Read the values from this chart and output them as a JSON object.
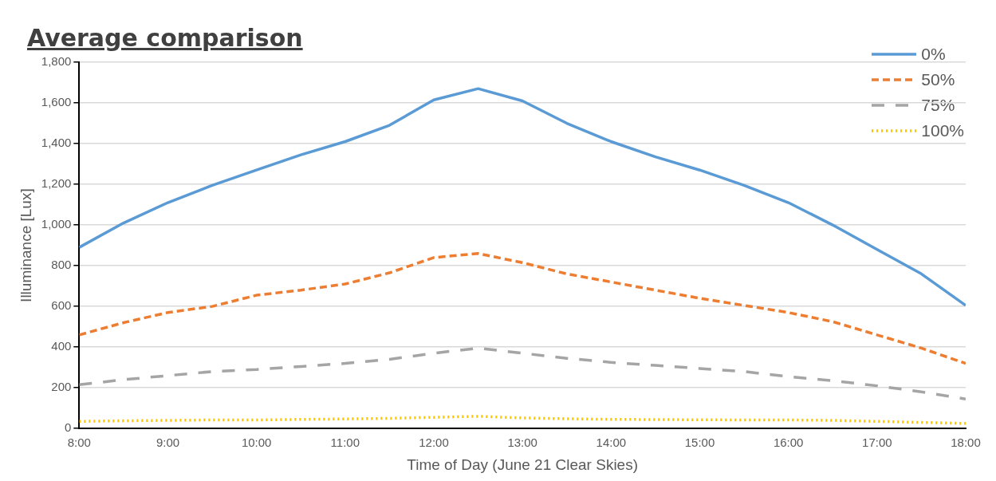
{
  "chart_data": {
    "type": "line",
    "title": "Average comparison",
    "xlabel": "Time of Day (June 21 Clear Skies)",
    "ylabel": "Illuminance [Lux]",
    "x": [
      8,
      8.5,
      9,
      9.5,
      10,
      10.5,
      11,
      11.5,
      12,
      12.5,
      13,
      13.5,
      14,
      14.5,
      15,
      15.5,
      16,
      16.5,
      17,
      17.5,
      18
    ],
    "series": [
      {
        "name": "0%",
        "color": "#5b9bd5",
        "line_style": "solid",
        "values": [
          890,
          1010,
          1110,
          1195,
          1270,
          1345,
          1410,
          1490,
          1615,
          1670,
          1610,
          1500,
          1410,
          1335,
          1270,
          1195,
          1110,
          1000,
          880,
          760,
          605
        ]
      },
      {
        "name": "50%",
        "color": "#ed7d31",
        "line_style": "dashed",
        "values": [
          460,
          520,
          570,
          600,
          655,
          680,
          710,
          765,
          840,
          860,
          815,
          760,
          720,
          680,
          640,
          605,
          570,
          525,
          460,
          395,
          320
        ]
      },
      {
        "name": "75%",
        "color": "#a5a5a5",
        "line_style": "longdash",
        "values": [
          215,
          240,
          260,
          280,
          290,
          305,
          320,
          340,
          370,
          395,
          370,
          345,
          325,
          310,
          295,
          280,
          255,
          235,
          210,
          180,
          145
        ]
      },
      {
        "name": "100%",
        "color": "#ffc000",
        "line_style": "dotted",
        "values": [
          35,
          38,
          40,
          42,
          42,
          45,
          47,
          50,
          55,
          60,
          52,
          48,
          45,
          44,
          43,
          42,
          42,
          40,
          35,
          30,
          25
        ]
      }
    ],
    "xlim": [
      8,
      18
    ],
    "xticks": [
      {
        "value": 8,
        "label": "8:00"
      },
      {
        "value": 9,
        "label": "9:00"
      },
      {
        "value": 10,
        "label": "10:00"
      },
      {
        "value": 11,
        "label": "11:00"
      },
      {
        "value": 12,
        "label": "12:00"
      },
      {
        "value": 13,
        "label": "13:00"
      },
      {
        "value": 14,
        "label": "14:00"
      },
      {
        "value": 15,
        "label": "15:00"
      },
      {
        "value": 16,
        "label": "16:00"
      },
      {
        "value": 17,
        "label": "17:00"
      },
      {
        "value": 18,
        "label": "18:00"
      }
    ],
    "ylim": [
      0,
      1800
    ],
    "yticks": [
      {
        "value": 0,
        "label": "0"
      },
      {
        "value": 200,
        "label": "200"
      },
      {
        "value": 400,
        "label": "400"
      },
      {
        "value": 600,
        "label": "600"
      },
      {
        "value": 800,
        "label": "800"
      },
      {
        "value": 1000,
        "label": "1,000"
      },
      {
        "value": 1200,
        "label": "1,200"
      },
      {
        "value": 1400,
        "label": "1,400"
      },
      {
        "value": 1600,
        "label": "1,600"
      },
      {
        "value": 1800,
        "label": "1,800"
      }
    ],
    "grid": "y",
    "legend": "top right",
    "marker": "none"
  }
}
